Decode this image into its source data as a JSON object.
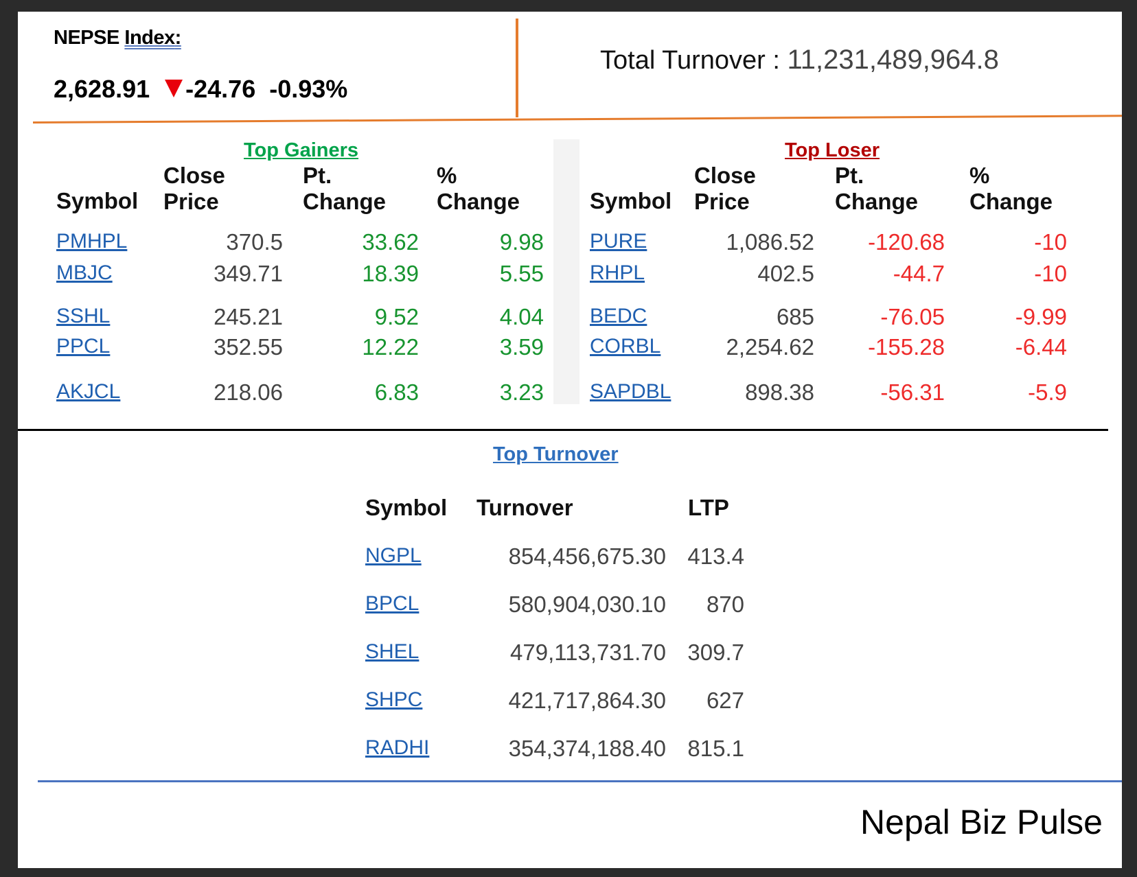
{
  "index": {
    "label_prefix": "NEPSE",
    "label_word": "Index",
    "label_suffix": ":",
    "value": "2,628.91",
    "change": "-24.76",
    "percent": "-0.93%"
  },
  "turnover_total": {
    "label": "Total Turnover :",
    "value": "11,231,489,964.8"
  },
  "gainers": {
    "title": "Top Gainers",
    "headers": {
      "symbol": "Symbol",
      "close1": "Close",
      "close2": "Price",
      "pt1": "Pt.",
      "pt2": "Change",
      "pc1": "%",
      "pc2": "Change"
    },
    "rows": [
      {
        "symbol": "PMHPL",
        "close": "370.5",
        "pt": "33.62",
        "pc": "9.98"
      },
      {
        "symbol": "MBJC",
        "close": "349.71",
        "pt": "18.39",
        "pc": "5.55"
      },
      {
        "symbol": "SSHL",
        "close": "245.21",
        "pt": "9.52",
        "pc": "4.04"
      },
      {
        "symbol": "PPCL",
        "close": "352.55",
        "pt": "12.22",
        "pc": "3.59"
      },
      {
        "symbol": "AKJCL",
        "close": "218.06",
        "pt": "6.83",
        "pc": "3.23"
      }
    ]
  },
  "losers": {
    "title": "Top Loser",
    "headers": {
      "symbol": "Symbol",
      "close1": "Close",
      "close2": "Price",
      "pt1": "Pt.",
      "pt2": "Change",
      "pc1": "%",
      "pc2": "Change"
    },
    "rows": [
      {
        "symbol": "PURE",
        "close": "1,086.52",
        "pt": "-120.68",
        "pc": "-10"
      },
      {
        "symbol": "RHPL",
        "close": "402.5",
        "pt": "-44.7",
        "pc": "-10"
      },
      {
        "symbol": "BEDC",
        "close": "685",
        "pt": "-76.05",
        "pc": "-9.99"
      },
      {
        "symbol": "CORBL",
        "close": "2,254.62",
        "pt": "-155.28",
        "pc": "-6.44"
      },
      {
        "symbol": "SAPDBL",
        "close": "898.38",
        "pt": "-56.31",
        "pc": "-5.9"
      }
    ]
  },
  "top_turnover": {
    "title": "Top Turnover",
    "headers": {
      "symbol": "Symbol",
      "turnover": "Turnover",
      "ltp": "LTP"
    },
    "rows": [
      {
        "symbol": "NGPL",
        "turnover": "854,456,675.30",
        "ltp": "413.4"
      },
      {
        "symbol": "BPCL",
        "turnover": "580,904,030.10",
        "ltp": "870"
      },
      {
        "symbol": "SHEL",
        "turnover": "479,113,731.70",
        "ltp": "309.7"
      },
      {
        "symbol": "SHPC",
        "turnover": "421,717,864.30",
        "ltp": "627"
      },
      {
        "symbol": "RADHI",
        "turnover": "354,374,188.40",
        "ltp": "815.1"
      }
    ]
  },
  "brand": "Nepal Biz Pulse",
  "colors": {
    "gain": "#17942f",
    "loss": "#ee2b2b",
    "link": "#1f5fb0",
    "accent_orange": "#e57c2d",
    "accent_blue": "#4a73c0"
  }
}
